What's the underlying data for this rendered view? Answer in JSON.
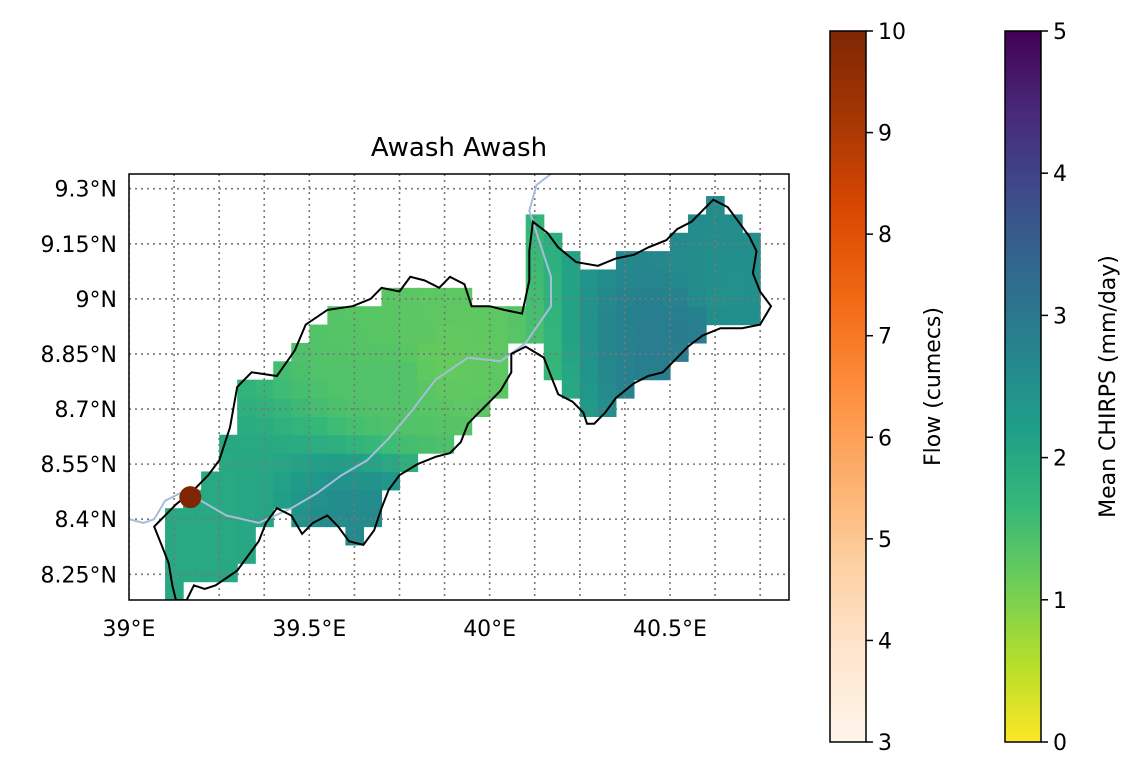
{
  "map": {
    "title": "Awash Awash",
    "lon_range": [
      39.0,
      40.83
    ],
    "lat_range": [
      8.18,
      9.34
    ],
    "lon_ticks": [
      {
        "value": 39.0,
        "label": "39°E"
      },
      {
        "value": 39.5,
        "label": "39.5°E"
      },
      {
        "value": 40.0,
        "label": "40°E"
      },
      {
        "value": 40.5,
        "label": "40.5°E"
      }
    ],
    "lat_ticks": [
      {
        "value": 9.3,
        "label": "9.3°N"
      },
      {
        "value": 9.15,
        "label": "9.15°N"
      },
      {
        "value": 9.0,
        "label": "9°N"
      },
      {
        "value": 8.85,
        "label": "8.85°N"
      },
      {
        "value": 8.7,
        "label": "8.7°N"
      },
      {
        "value": 8.55,
        "label": "8.55°N"
      },
      {
        "value": 8.4,
        "label": "8.4°N"
      },
      {
        "value": 8.25,
        "label": "8.25°N"
      }
    ],
    "grid_style": "dotted",
    "gridline_lons": [
      39.0,
      39.125,
      39.25,
      39.375,
      39.5,
      39.625,
      39.75,
      39.875,
      40.0,
      40.125,
      40.25,
      40.375,
      40.5,
      40.625,
      40.75
    ],
    "gridline_lats": [
      8.25,
      8.4,
      8.55,
      8.7,
      8.85,
      9.0,
      9.15,
      9.3
    ],
    "gauge": {
      "lon": 39.17,
      "lat": 8.46,
      "color": "#7f2704"
    },
    "river_color": "#a6bddb",
    "boundary_color": "#000000",
    "river_path": [
      [
        39.0,
        8.4
      ],
      [
        39.04,
        8.39
      ],
      [
        39.07,
        8.4
      ],
      [
        39.1,
        8.45
      ],
      [
        39.14,
        8.47
      ],
      [
        39.2,
        8.45
      ],
      [
        39.27,
        8.41
      ],
      [
        39.36,
        8.39
      ],
      [
        39.45,
        8.43
      ],
      [
        39.52,
        8.47
      ],
      [
        39.59,
        8.52
      ],
      [
        39.66,
        8.56
      ],
      [
        39.72,
        8.62
      ],
      [
        39.78,
        8.69
      ],
      [
        39.85,
        8.78
      ],
      [
        39.94,
        8.84
      ],
      [
        40.03,
        8.83
      ],
      [
        40.1,
        8.88
      ],
      [
        40.17,
        8.98
      ],
      [
        40.17,
        9.06
      ],
      [
        40.14,
        9.15
      ],
      [
        40.11,
        9.24
      ],
      [
        40.13,
        9.31
      ],
      [
        40.17,
        9.34
      ]
    ],
    "boundary_path": [
      [
        39.07,
        8.38
      ],
      [
        39.13,
        8.44
      ],
      [
        39.18,
        8.48
      ],
      [
        39.22,
        8.52
      ],
      [
        39.25,
        8.56
      ],
      [
        39.28,
        8.65
      ],
      [
        39.3,
        8.76
      ],
      [
        39.34,
        8.8
      ],
      [
        39.41,
        8.79
      ],
      [
        39.46,
        8.86
      ],
      [
        39.49,
        8.93
      ],
      [
        39.55,
        8.97
      ],
      [
        39.62,
        8.98
      ],
      [
        39.67,
        9.0
      ],
      [
        39.7,
        9.03
      ],
      [
        39.75,
        9.02
      ],
      [
        39.78,
        9.06
      ],
      [
        39.82,
        9.05
      ],
      [
        39.86,
        9.03
      ],
      [
        39.89,
        9.06
      ],
      [
        39.93,
        9.04
      ],
      [
        39.95,
        8.98
      ],
      [
        40.0,
        8.98
      ],
      [
        40.04,
        8.97
      ],
      [
        40.09,
        8.96
      ],
      [
        40.11,
        9.05
      ],
      [
        40.11,
        9.13
      ],
      [
        40.12,
        9.21
      ],
      [
        40.16,
        9.18
      ],
      [
        40.19,
        9.14
      ],
      [
        40.24,
        9.1
      ],
      [
        40.3,
        9.09
      ],
      [
        40.35,
        9.11
      ],
      [
        40.4,
        9.12
      ],
      [
        40.44,
        9.14
      ],
      [
        40.49,
        9.16
      ],
      [
        40.52,
        9.19
      ],
      [
        40.56,
        9.21
      ],
      [
        40.59,
        9.24
      ],
      [
        40.62,
        9.27
      ],
      [
        40.66,
        9.25
      ],
      [
        40.69,
        9.21
      ],
      [
        40.72,
        9.17
      ],
      [
        40.74,
        9.13
      ],
      [
        40.73,
        9.07
      ],
      [
        40.75,
        9.02
      ],
      [
        40.78,
        8.98
      ],
      [
        40.75,
        8.93
      ],
      [
        40.7,
        8.92
      ],
      [
        40.64,
        8.92
      ],
      [
        40.59,
        8.9
      ],
      [
        40.55,
        8.87
      ],
      [
        40.51,
        8.83
      ],
      [
        40.48,
        8.8
      ],
      [
        40.44,
        8.79
      ],
      [
        40.4,
        8.77
      ],
      [
        40.35,
        8.73
      ],
      [
        40.32,
        8.69
      ],
      [
        40.29,
        8.66
      ],
      [
        40.27,
        8.66
      ],
      [
        40.26,
        8.69
      ],
      [
        40.23,
        8.72
      ],
      [
        40.19,
        8.74
      ],
      [
        40.17,
        8.79
      ],
      [
        40.15,
        8.84
      ],
      [
        40.1,
        8.87
      ],
      [
        40.06,
        8.85
      ],
      [
        40.06,
        8.8
      ],
      [
        40.03,
        8.75
      ],
      [
        40.0,
        8.72
      ],
      [
        39.97,
        8.69
      ],
      [
        39.94,
        8.66
      ],
      [
        39.92,
        8.61
      ],
      [
        39.89,
        8.58
      ],
      [
        39.85,
        8.57
      ],
      [
        39.8,
        8.55
      ],
      [
        39.75,
        8.52
      ],
      [
        39.72,
        8.48
      ],
      [
        39.7,
        8.43
      ],
      [
        39.68,
        8.37
      ],
      [
        39.65,
        8.33
      ],
      [
        39.61,
        8.34
      ],
      [
        39.58,
        8.38
      ],
      [
        39.55,
        8.41
      ],
      [
        39.51,
        8.39
      ],
      [
        39.48,
        8.36
      ],
      [
        39.45,
        8.41
      ],
      [
        39.41,
        8.43
      ],
      [
        39.38,
        8.39
      ],
      [
        39.36,
        8.34
      ],
      [
        39.33,
        8.3
      ],
      [
        39.3,
        8.26
      ],
      [
        39.27,
        8.24
      ],
      [
        39.24,
        8.22
      ],
      [
        39.21,
        8.21
      ],
      [
        39.18,
        8.22
      ],
      [
        39.16,
        8.18
      ],
      [
        39.13,
        8.18
      ],
      [
        39.12,
        8.22
      ],
      [
        39.11,
        8.28
      ],
      [
        39.09,
        8.33
      ],
      [
        39.07,
        8.38
      ]
    ]
  },
  "chart_data": {
    "type": "heatmap",
    "title": "Awash Awash",
    "variable": "Mean CHIRPS (mm/day)",
    "cell_size_deg": 0.05,
    "cells": [
      {
        "lon": 39.85,
        "lat": 8.85,
        "value": 1.2
      },
      {
        "lon": 39.8,
        "lat": 8.9,
        "value": 1.3
      },
      {
        "lon": 39.75,
        "lat": 8.8,
        "value": 1.4
      },
      {
        "lon": 40.55,
        "lat": 8.9,
        "value": 2.9
      },
      {
        "lon": 40.65,
        "lat": 9.0,
        "value": 2.5
      },
      {
        "lon": 39.65,
        "lat": 8.35,
        "value": 2.6
      },
      {
        "lon": 39.2,
        "lat": 8.4,
        "value": 2.0
      }
    ],
    "colorbars": [
      {
        "name": "Flow (cumecs)",
        "label": "Flow (cumecs)",
        "cmap": "Oranges",
        "range": [
          3,
          10
        ],
        "ticks": [
          "3",
          "4",
          "5",
          "6",
          "7",
          "8",
          "9",
          "10"
        ]
      },
      {
        "name": "Mean CHIRPS (mm/day)",
        "label": "Mean CHIRPS (mm/day)",
        "cmap": "viridis_r",
        "range": [
          0,
          5
        ],
        "ticks": [
          "0",
          "1",
          "2",
          "3",
          "4",
          "5"
        ]
      }
    ]
  },
  "colors": {
    "flow_cmap": [
      "#fff5eb",
      "#fee6ce",
      "#fdd0a2",
      "#fdae6b",
      "#fd8d3c",
      "#f16913",
      "#d94801",
      "#a63603",
      "#7f2704"
    ],
    "chirps_cmap_low_to_high": [
      "#fde725",
      "#b5de2b",
      "#6ece58",
      "#35b779",
      "#1f9e89",
      "#26828e",
      "#31688e",
      "#3e4989",
      "#482878",
      "#440154"
    ]
  }
}
